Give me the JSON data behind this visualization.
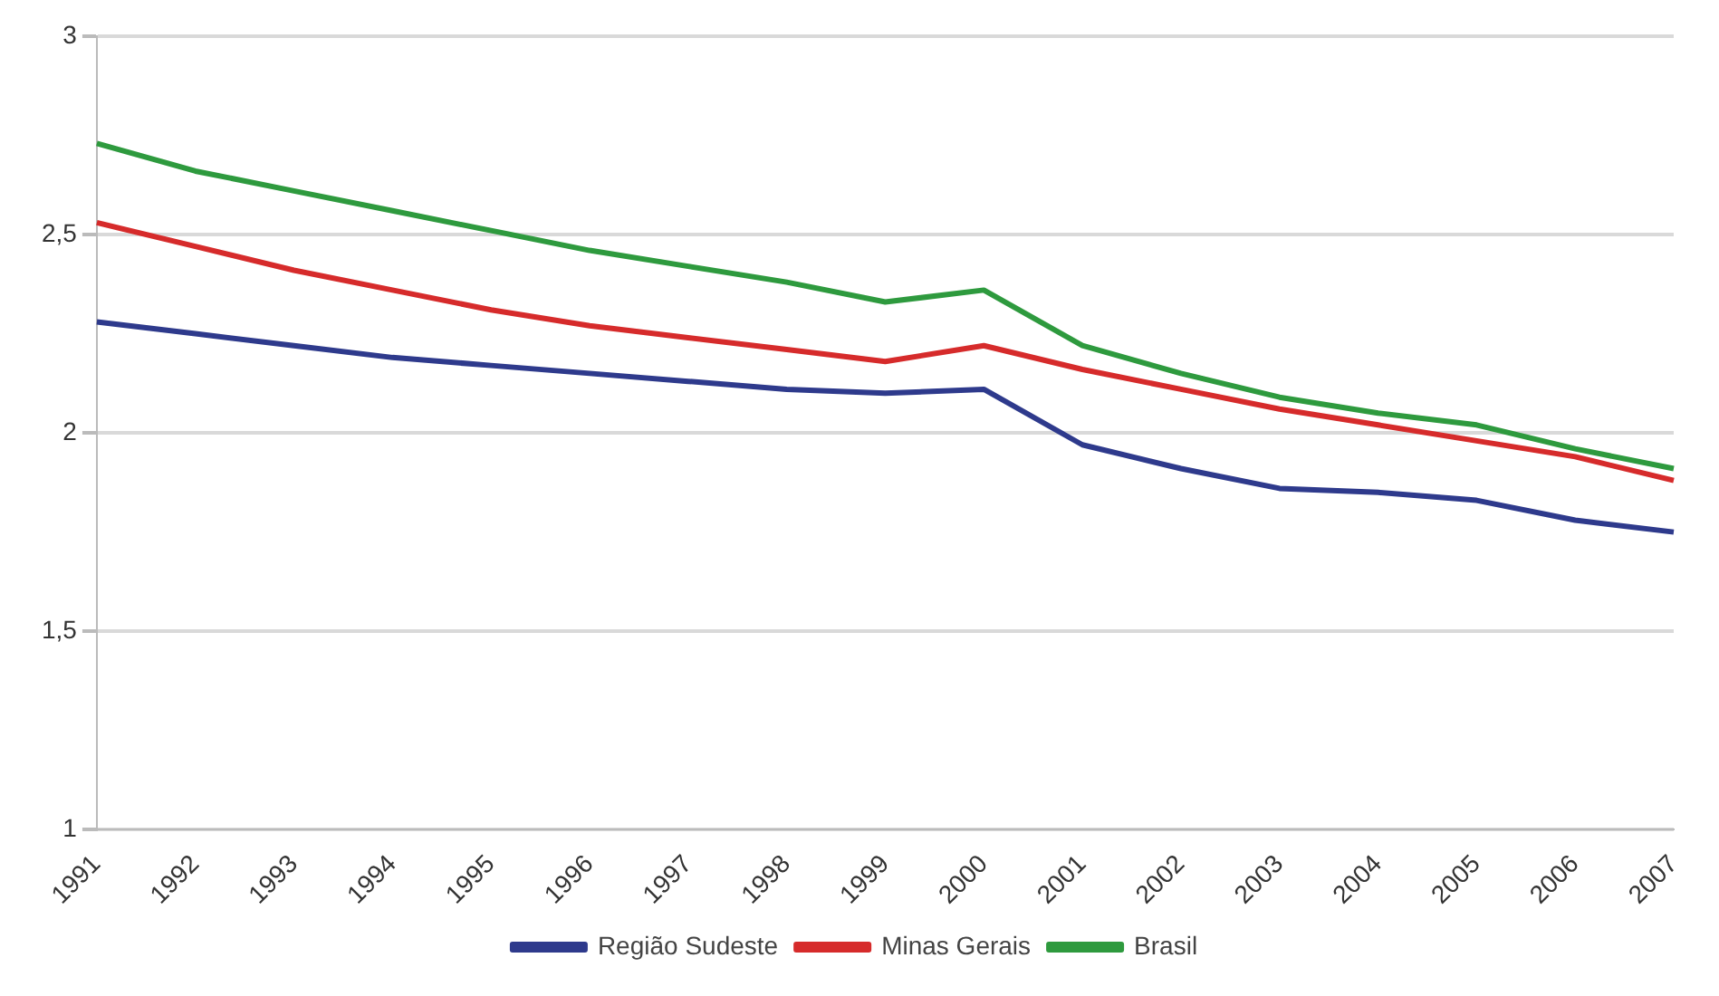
{
  "chart_data": {
    "type": "line",
    "categories": [
      "1991",
      "1992",
      "1993",
      "1994",
      "1995",
      "1996",
      "1997",
      "1998",
      "1999",
      "2000",
      "2001",
      "2002",
      "2003",
      "2004",
      "2005",
      "2006",
      "2007"
    ],
    "series": [
      {
        "name": "Região Sudeste",
        "color": "#2e3a8c",
        "values": [
          2.28,
          2.25,
          2.22,
          2.19,
          2.17,
          2.15,
          2.13,
          2.11,
          2.1,
          2.11,
          1.97,
          1.91,
          1.86,
          1.85,
          1.83,
          1.78,
          1.75
        ]
      },
      {
        "name": "Minas Gerais",
        "color": "#d62b2b",
        "values": [
          2.53,
          2.47,
          2.41,
          2.36,
          2.31,
          2.27,
          2.24,
          2.21,
          2.18,
          2.22,
          2.16,
          2.11,
          2.06,
          2.02,
          1.98,
          1.94,
          1.88
        ]
      },
      {
        "name": "Brasil",
        "color": "#2e9a3e",
        "values": [
          2.73,
          2.66,
          2.61,
          2.56,
          2.51,
          2.46,
          2.42,
          2.38,
          2.33,
          2.36,
          2.22,
          2.15,
          2.09,
          2.05,
          2.02,
          1.96,
          1.91
        ]
      }
    ],
    "ylim": [
      1,
      3
    ],
    "yticks": [
      1,
      {
        "value": 1.5,
        "label": "1,5"
      },
      2,
      {
        "value": 2.5,
        "label": "2,5"
      },
      3
    ],
    "grid": "y",
    "legend": "bottom",
    "line_style": "solid"
  }
}
